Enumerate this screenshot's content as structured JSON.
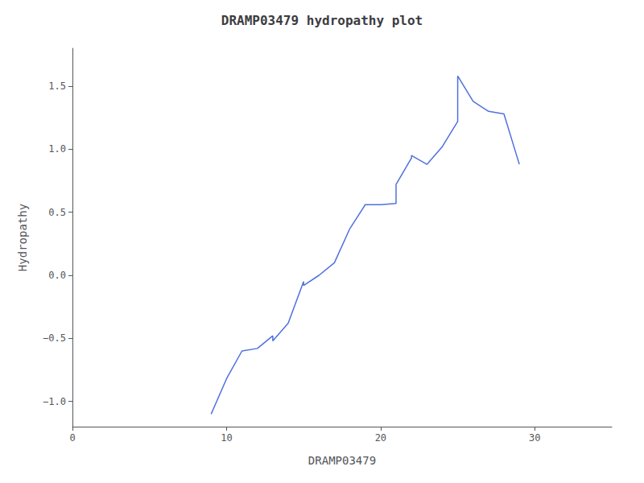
{
  "chart_data": {
    "type": "line",
    "title": "DRAMP03479 hydropathy plot",
    "xlabel": "DRAMP03479",
    "ylabel": "Hydropathy",
    "x": [
      9,
      10,
      11,
      12,
      13,
      13,
      14,
      15,
      15,
      16,
      17,
      18,
      19,
      20,
      21,
      21,
      22,
      22,
      23,
      24,
      25,
      25,
      26,
      27,
      28,
      29
    ],
    "values": [
      -1.1,
      -0.82,
      -0.6,
      -0.58,
      -0.48,
      -0.52,
      -0.38,
      -0.05,
      -0.08,
      0.0,
      0.1,
      0.37,
      0.56,
      0.56,
      0.57,
      0.72,
      0.93,
      0.95,
      0.88,
      1.02,
      1.22,
      1.58,
      1.38,
      1.3,
      1.28,
      0.88
    ],
    "xlim": [
      0,
      35
    ],
    "xticks": [
      0,
      10,
      20,
      30
    ],
    "ylim": [
      -1.2,
      1.8
    ],
    "yticks": [
      {
        "value": -1.0,
        "label": "−1.0"
      },
      {
        "value": -0.5,
        "label": "−0.5"
      },
      {
        "value": 0.0,
        "label": "0.0"
      },
      {
        "value": 0.5,
        "label": "0.5"
      },
      {
        "value": 1.0,
        "label": "1.0"
      },
      {
        "value": 1.5,
        "label": "1.5"
      }
    ],
    "grid": false
  }
}
